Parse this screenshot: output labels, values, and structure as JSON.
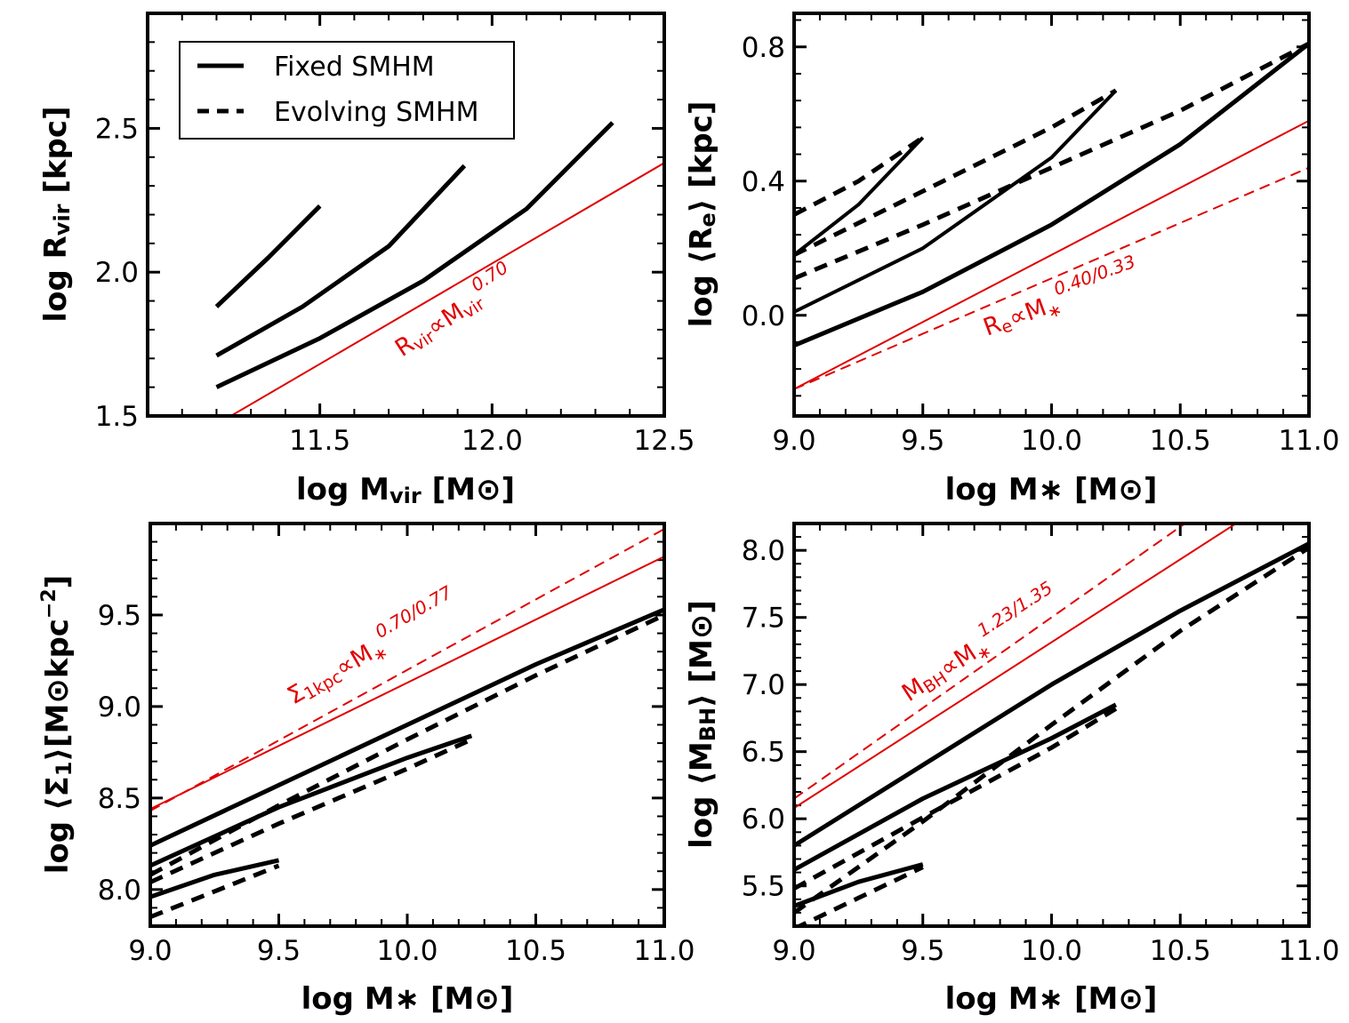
{
  "chart_data": [
    {
      "type": "line",
      "id": "rvir",
      "xlim": [
        11.0,
        12.5
      ],
      "ylim": [
        1.5,
        2.9
      ],
      "xticks": [
        11.5,
        12.0,
        12.5
      ],
      "xtick_labels": [
        "11.5",
        "12.0",
        "12.5"
      ],
      "yticks": [
        1.5,
        2.0,
        2.5
      ],
      "ytick_labels": [
        "1.5",
        "2.0",
        "2.5"
      ],
      "xlabel": "log M_vir [M_sun]",
      "ylabel": "log R_vir [kpc]",
      "xlabel_parts": {
        "main": "log M",
        "sub": "vir",
        "rest": " [M",
        "sun": "⊙",
        "close": "]"
      },
      "ylabel_parts": {
        "main": "log R",
        "sub": "vir",
        "rest": " [kpc]"
      },
      "legend": {
        "position": "top-left",
        "entries": [
          {
            "label": "Fixed SMHM",
            "style": "solid"
          },
          {
            "label": "Evolving SMHM",
            "style": "dashed"
          }
        ]
      },
      "annotation": {
        "parts": {
          "a": "R",
          "asub": "vir",
          "b": "∝M",
          "bsub": "vir",
          "exp": "0.70"
        }
      },
      "series": [
        {
          "name": "Fixed SMHM 1",
          "style": "solid",
          "color": "#000000",
          "width": 5,
          "x": [
            11.2,
            11.35,
            11.5
          ],
          "y": [
            1.88,
            2.05,
            2.23
          ]
        },
        {
          "name": "Evolving SMHM 1",
          "style": "dashed",
          "color": "#000000",
          "width": 4,
          "x": [
            11.2,
            11.35,
            11.5
          ],
          "y": [
            1.88,
            2.05,
            2.23
          ]
        },
        {
          "name": "Fixed SMHM 2",
          "style": "solid",
          "color": "#000000",
          "width": 5,
          "x": [
            11.2,
            11.45,
            11.7,
            11.92
          ],
          "y": [
            1.71,
            1.88,
            2.09,
            2.37
          ]
        },
        {
          "name": "Evolving SMHM 2",
          "style": "dashed",
          "color": "#000000",
          "width": 4,
          "x": [
            11.45,
            11.7,
            11.92
          ],
          "y": [
            1.88,
            2.09,
            2.37
          ]
        },
        {
          "name": "Fixed SMHM 3",
          "style": "solid",
          "color": "#000000",
          "width": 5,
          "x": [
            11.2,
            11.5,
            11.8,
            12.1,
            12.35
          ],
          "y": [
            1.6,
            1.77,
            1.97,
            2.22,
            2.52
          ]
        },
        {
          "name": "Relation",
          "style": "solid",
          "color": "#e00000",
          "width": 2,
          "x": [
            11.22,
            12.5
          ],
          "y": [
            1.485,
            2.38
          ]
        }
      ]
    },
    {
      "type": "line",
      "id": "re",
      "xlim": [
        9.0,
        11.0
      ],
      "ylim": [
        -0.3,
        0.9
      ],
      "xticks": [
        9.0,
        9.5,
        10.0,
        10.5,
        11.0
      ],
      "xtick_labels": [
        "9.0",
        "9.5",
        "10.0",
        "10.5",
        "11.0"
      ],
      "yticks": [
        0.0,
        0.4,
        0.8
      ],
      "ytick_labels": [
        "0.0",
        "0.4",
        "0.8"
      ],
      "xlabel": "log M_* [M_sun]",
      "ylabel": "log <R_e> [kpc]",
      "xlabel_parts": {
        "main": "log M",
        "star": "∗",
        "rest": " [M",
        "sun": "⊙",
        "close": "]"
      },
      "ylabel_parts": {
        "main": "log ⟨R",
        "sub": "e",
        "rest": "⟩ [kpc]"
      },
      "annotation": {
        "parts": {
          "a": "R",
          "asub": "e",
          "b": "∝M",
          "bsub": "∗",
          "exp": "0.40/0.33"
        }
      },
      "series": [
        {
          "name": "Fixed SMHM 1",
          "style": "solid",
          "color": "#000000",
          "width": 4,
          "x": [
            9.0,
            9.25,
            9.5
          ],
          "y": [
            0.18,
            0.33,
            0.53
          ]
        },
        {
          "name": "Evolving SMHM 1",
          "style": "dashed",
          "color": "#000000",
          "width": 5,
          "x": [
            9.0,
            9.25,
            9.5
          ],
          "y": [
            0.3,
            0.4,
            0.53
          ]
        },
        {
          "name": "Fixed SMHM 2",
          "style": "solid",
          "color": "#000000",
          "width": 4,
          "x": [
            9.0,
            9.5,
            10.0,
            10.25
          ],
          "y": [
            0.01,
            0.2,
            0.47,
            0.67
          ]
        },
        {
          "name": "Evolving SMHM 2",
          "style": "dashed",
          "color": "#000000",
          "width": 5,
          "x": [
            9.0,
            9.5,
            10.0,
            10.25
          ],
          "y": [
            0.18,
            0.37,
            0.56,
            0.67
          ]
        },
        {
          "name": "Fixed SMHM 3",
          "style": "solid",
          "color": "#000000",
          "width": 5,
          "x": [
            9.0,
            9.5,
            10.0,
            10.5,
            11.0
          ],
          "y": [
            -0.09,
            0.07,
            0.27,
            0.51,
            0.81
          ]
        },
        {
          "name": "Evolving SMHM 3",
          "style": "dashed",
          "color": "#000000",
          "width": 5,
          "x": [
            9.0,
            9.5,
            10.0,
            10.5,
            11.0
          ],
          "y": [
            0.11,
            0.27,
            0.44,
            0.61,
            0.81
          ]
        },
        {
          "name": "Relation solid",
          "style": "solid",
          "color": "#e00000",
          "width": 2,
          "x": [
            9.0,
            11.0
          ],
          "y": [
            -0.22,
            0.58
          ]
        },
        {
          "name": "Relation dashed",
          "style": "dashed",
          "color": "#e00000",
          "width": 2,
          "x": [
            9.0,
            11.0
          ],
          "y": [
            -0.22,
            0.44
          ]
        }
      ]
    },
    {
      "type": "line",
      "id": "sigma",
      "xlim": [
        9.0,
        11.0
      ],
      "ylim": [
        7.8,
        10.0
      ],
      "xticks": [
        9.0,
        9.5,
        10.0,
        10.5,
        11.0
      ],
      "xtick_labels": [
        "9.0",
        "9.5",
        "10.0",
        "10.5",
        "11.0"
      ],
      "yticks": [
        8.0,
        8.5,
        9.0,
        9.5
      ],
      "ytick_labels": [
        "8.0",
        "8.5",
        "9.0",
        "9.5"
      ],
      "xlabel": "log M_* [M_sun]",
      "ylabel": "log <Sigma_1>[M_sun kpc^-2]",
      "xlabel_parts": {
        "main": "log M",
        "star": "∗",
        "rest": " [M",
        "sun": "⊙",
        "close": "]"
      },
      "ylabel_parts": {
        "main": "log ⟨Σ",
        "sub": "1",
        "rest": "⟩[M",
        "sun": "⊙",
        "unit": "kpc",
        "sup": "−2",
        "close": "]"
      },
      "annotation": {
        "parts": {
          "a": "Σ",
          "asub": "1kpc",
          "b": "∝M",
          "bsub": "∗",
          "exp": "0.70/0.77"
        }
      },
      "series": [
        {
          "name": "Fixed SMHM 1",
          "style": "solid",
          "color": "#000000",
          "width": 5,
          "x": [
            9.0,
            9.25,
            9.5
          ],
          "y": [
            7.96,
            8.08,
            8.16
          ]
        },
        {
          "name": "Evolving SMHM 1",
          "style": "dashed",
          "color": "#000000",
          "width": 5,
          "x": [
            9.0,
            9.25,
            9.5
          ],
          "y": [
            7.85,
            7.99,
            8.13
          ]
        },
        {
          "name": "Fixed SMHM 2",
          "style": "solid",
          "color": "#000000",
          "width": 5,
          "x": [
            9.0,
            9.5,
            10.0,
            10.25
          ],
          "y": [
            8.13,
            8.45,
            8.72,
            8.84
          ]
        },
        {
          "name": "Evolving SMHM 2",
          "style": "dashed",
          "color": "#000000",
          "width": 5,
          "x": [
            9.0,
            9.5,
            10.0,
            10.25
          ],
          "y": [
            8.04,
            8.36,
            8.66,
            8.82
          ]
        },
        {
          "name": "Fixed SMHM 3",
          "style": "solid",
          "color": "#000000",
          "width": 5,
          "x": [
            9.0,
            9.5,
            10.0,
            10.5,
            11.0
          ],
          "y": [
            8.24,
            8.57,
            8.9,
            9.23,
            9.53
          ]
        },
        {
          "name": "Evolving SMHM 3",
          "style": "dashed",
          "color": "#000000",
          "width": 5,
          "x": [
            9.0,
            9.5,
            10.0,
            10.5,
            11.0
          ],
          "y": [
            8.08,
            8.46,
            8.82,
            9.17,
            9.5
          ]
        },
        {
          "name": "Relation solid",
          "style": "solid",
          "color": "#e00000",
          "width": 2,
          "x": [
            9.0,
            11.0
          ],
          "y": [
            8.44,
            9.82
          ]
        },
        {
          "name": "Relation dashed",
          "style": "dashed",
          "color": "#e00000",
          "width": 2,
          "x": [
            9.0,
            11.0
          ],
          "y": [
            8.43,
            9.97
          ]
        }
      ]
    },
    {
      "type": "line",
      "id": "mbh",
      "xlim": [
        9.0,
        11.0
      ],
      "ylim": [
        5.2,
        8.2
      ],
      "xticks": [
        9.0,
        9.5,
        10.0,
        10.5,
        11.0
      ],
      "xtick_labels": [
        "9.0",
        "9.5",
        "10.0",
        "10.5",
        "11.0"
      ],
      "yticks": [
        5.5,
        6.0,
        6.5,
        7.0,
        7.5,
        8.0
      ],
      "ytick_labels": [
        "5.5",
        "6.0",
        "6.5",
        "7.0",
        "7.5",
        "8.0"
      ],
      "xlabel": "log M_* [M_sun]",
      "ylabel": "log <M_BH> [M_sun]",
      "xlabel_parts": {
        "main": "log M",
        "star": "∗",
        "rest": " [M",
        "sun": "⊙",
        "close": "]"
      },
      "ylabel_parts": {
        "main": "log ⟨M",
        "sub": "BH",
        "rest": "⟩ [M",
        "sun": "⊙",
        "close": "]"
      },
      "annotation": {
        "parts": {
          "a": "M",
          "asub": "BH",
          "b": "∝M",
          "bsub": "∗",
          "exp": "1.23/1.35"
        }
      },
      "series": [
        {
          "name": "Fixed SMHM 1",
          "style": "solid",
          "color": "#000000",
          "width": 5,
          "x": [
            9.0,
            9.25,
            9.5
          ],
          "y": [
            5.35,
            5.53,
            5.66
          ]
        },
        {
          "name": "Evolving SMHM 1",
          "style": "dashed",
          "color": "#000000",
          "width": 5,
          "x": [
            9.0,
            9.25,
            9.5
          ],
          "y": [
            5.18,
            5.41,
            5.64
          ]
        },
        {
          "name": "Fixed SMHM 2",
          "style": "solid",
          "color": "#000000",
          "width": 5,
          "x": [
            9.0,
            9.5,
            10.0,
            10.25
          ],
          "y": [
            5.62,
            6.15,
            6.6,
            6.85
          ]
        },
        {
          "name": "Evolving SMHM 2",
          "style": "dashed",
          "color": "#000000",
          "width": 5,
          "x": [
            9.0,
            9.5,
            10.0,
            10.25
          ],
          "y": [
            5.48,
            6.01,
            6.53,
            6.82
          ]
        },
        {
          "name": "Fixed SMHM 3",
          "style": "solid",
          "color": "#000000",
          "width": 5,
          "x": [
            9.0,
            9.5,
            10.0,
            10.5,
            11.0
          ],
          "y": [
            5.8,
            6.4,
            7.0,
            7.55,
            8.05
          ]
        },
        {
          "name": "Evolving SMHM 3",
          "style": "dashed",
          "color": "#000000",
          "width": 5,
          "x": [
            9.0,
            9.5,
            10.0,
            10.5,
            11.0
          ],
          "y": [
            5.3,
            5.98,
            6.7,
            7.4,
            8.02
          ]
        },
        {
          "name": "Relation solid",
          "style": "solid",
          "color": "#e00000",
          "width": 2,
          "x": [
            9.0,
            11.0
          ],
          "y": [
            6.08,
            8.55
          ]
        },
        {
          "name": "Relation dashed",
          "style": "dashed",
          "color": "#e00000",
          "width": 2,
          "x": [
            9.0,
            11.0
          ],
          "y": [
            6.15,
            8.85
          ]
        }
      ]
    }
  ]
}
